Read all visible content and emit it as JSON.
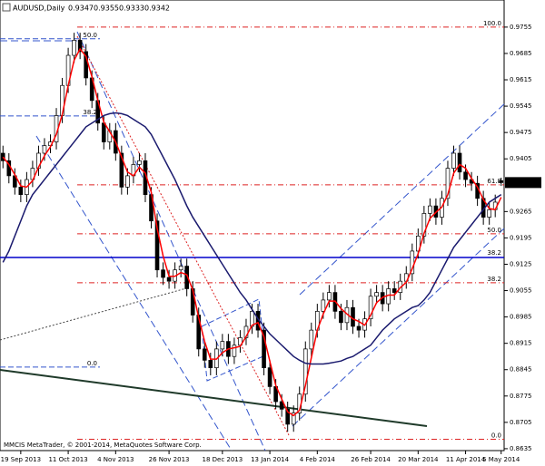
{
  "chart_data": {
    "type": "candlestick",
    "title": "AUDUSD,Daily",
    "footer": "MMCIS MetaTrader, © 2001-2014, MetaQuotes Software Corp.",
    "categories": [
      null,
      null,
      null,
      "19 Sep 2013",
      null,
      null,
      null,
      null,
      null,
      null,
      null,
      "11 Oct 2013",
      null,
      null,
      null,
      null,
      null,
      null,
      null,
      "4 Nov 2013",
      null,
      null,
      null,
      null,
      null,
      null,
      null,
      null,
      "26 Nov 2013",
      null,
      null,
      null,
      null,
      null,
      null,
      null,
      null,
      "18 Dec 2013",
      null,
      null,
      null,
      null,
      null,
      null,
      null,
      "13 Jan 2014",
      null,
      null,
      null,
      null,
      null,
      null,
      null,
      "4 Feb 2014",
      null,
      null,
      null,
      null,
      null,
      null,
      null,
      null,
      "26 Feb 2014",
      null,
      null,
      null,
      null,
      null,
      null,
      null,
      "20 Mar 2014",
      null,
      null,
      null,
      null,
      null,
      null,
      null,
      "11 Apr 2014",
      null,
      null,
      null,
      null,
      null,
      "5 May 2014"
    ],
    "open": [
      0.942,
      0.94,
      0.936,
      0.933,
      0.931,
      0.935,
      0.938,
      0.942,
      0.944,
      0.945,
      0.952,
      0.96,
      0.968,
      0.972,
      0.969,
      0.962,
      0.956,
      0.95,
      0.945,
      0.948,
      0.942,
      0.933,
      0.936,
      0.939,
      0.94,
      0.931,
      0.924,
      0.911,
      0.909,
      0.908,
      0.911,
      0.912,
      0.906,
      0.899,
      0.89,
      0.887,
      0.885,
      0.89,
      0.892,
      0.888,
      0.891,
      0.893,
      0.896,
      0.9,
      0.895,
      0.885,
      0.88,
      0.876,
      0.874,
      0.87,
      0.873,
      0.878,
      0.89,
      0.895,
      0.9,
      0.903,
      0.905,
      0.9,
      0.897,
      0.901,
      0.896,
      0.895,
      0.898,
      0.904,
      0.905,
      0.902,
      0.906,
      0.905,
      0.908,
      0.91,
      0.916,
      0.92,
      0.926,
      0.928,
      0.925,
      0.93,
      0.938,
      0.942,
      0.937,
      0.935,
      0.934,
      0.93,
      0.925,
      0.927,
      0.9347
    ],
    "high": [
      0.944,
      0.942,
      0.938,
      0.935,
      0.937,
      0.94,
      0.944,
      0.946,
      0.947,
      0.954,
      0.962,
      0.97,
      0.974,
      0.974,
      0.971,
      0.964,
      0.958,
      0.952,
      0.95,
      0.95,
      0.944,
      0.938,
      0.941,
      0.942,
      0.942,
      0.933,
      0.926,
      0.913,
      0.911,
      0.913,
      0.914,
      0.914,
      0.908,
      0.901,
      0.892,
      0.889,
      0.892,
      0.894,
      0.894,
      0.893,
      0.895,
      0.898,
      0.902,
      0.902,
      0.897,
      0.887,
      0.882,
      0.878,
      0.876,
      0.875,
      0.88,
      0.892,
      0.897,
      0.902,
      0.905,
      0.907,
      0.907,
      0.902,
      0.903,
      0.903,
      0.898,
      0.9,
      0.906,
      0.907,
      0.907,
      0.908,
      0.908,
      0.91,
      0.912,
      0.918,
      0.922,
      0.928,
      0.93,
      0.93,
      0.932,
      0.94,
      0.944,
      0.944,
      0.939,
      0.937,
      0.936,
      0.932,
      0.929,
      0.931,
      0.9355
    ],
    "low": [
      0.938,
      0.934,
      0.931,
      0.929,
      0.929,
      0.933,
      0.936,
      0.94,
      0.942,
      0.943,
      0.95,
      0.958,
      0.966,
      0.967,
      0.96,
      0.954,
      0.948,
      0.943,
      0.943,
      0.94,
      0.931,
      0.931,
      0.934,
      0.937,
      0.929,
      0.922,
      0.909,
      0.907,
      0.906,
      0.906,
      0.909,
      0.904,
      0.897,
      0.888,
      0.885,
      0.883,
      0.883,
      0.888,
      0.886,
      0.886,
      0.889,
      0.891,
      0.894,
      0.893,
      0.883,
      0.878,
      0.874,
      0.872,
      0.868,
      0.868,
      0.871,
      0.876,
      0.888,
      0.893,
      0.898,
      0.901,
      0.898,
      0.895,
      0.895,
      0.894,
      0.893,
      0.893,
      0.896,
      0.902,
      0.9,
      0.9,
      0.903,
      0.903,
      0.906,
      0.908,
      0.914,
      0.918,
      0.924,
      0.923,
      0.923,
      0.928,
      0.936,
      0.935,
      0.933,
      0.932,
      0.928,
      0.923,
      0.923,
      0.925,
      0.9333
    ],
    "close": [
      0.94,
      0.936,
      0.933,
      0.931,
      0.935,
      0.938,
      0.942,
      0.944,
      0.945,
      0.952,
      0.96,
      0.968,
      0.972,
      0.969,
      0.962,
      0.956,
      0.95,
      0.945,
      0.948,
      0.942,
      0.933,
      0.936,
      0.939,
      0.94,
      0.931,
      0.924,
      0.911,
      0.909,
      0.908,
      0.911,
      0.912,
      0.906,
      0.899,
      0.89,
      0.887,
      0.885,
      0.89,
      0.892,
      0.888,
      0.891,
      0.893,
      0.896,
      0.9,
      0.895,
      0.885,
      0.88,
      0.876,
      0.874,
      0.87,
      0.873,
      0.878,
      0.89,
      0.895,
      0.9,
      0.903,
      0.905,
      0.9,
      0.897,
      0.901,
      0.896,
      0.895,
      0.898,
      0.904,
      0.905,
      0.902,
      0.906,
      0.905,
      0.908,
      0.91,
      0.916,
      0.92,
      0.926,
      0.928,
      0.925,
      0.93,
      0.938,
      0.942,
      0.937,
      0.935,
      0.934,
      0.93,
      0.925,
      0.927,
      0.929,
      0.9342
    ],
    "ma": [
      {
        "color": "#ff0000",
        "values": [
          0.941,
          0.939,
          0.9363,
          0.9333,
          0.933,
          0.9347,
          0.9383,
          0.9413,
          0.9437,
          0.947,
          0.9523,
          0.96,
          0.9667,
          0.9697,
          0.9677,
          0.9623,
          0.956,
          0.9503,
          0.9477,
          0.945,
          0.941,
          0.937,
          0.936,
          0.9383,
          0.9367,
          0.9317,
          0.922,
          0.9147,
          0.9093,
          0.9093,
          0.9103,
          0.9097,
          0.9057,
          0.8983,
          0.892,
          0.8873,
          0.8873,
          0.889,
          0.89,
          0.8903,
          0.8907,
          0.8933,
          0.8963,
          0.897,
          0.8933,
          0.8867,
          0.8803,
          0.8767,
          0.8733,
          0.8723,
          0.8737,
          0.8803,
          0.8877,
          0.895,
          0.8993,
          0.9027,
          0.9027,
          0.9007,
          0.8993,
          0.898,
          0.8973,
          0.8963,
          0.899,
          0.9023,
          0.9037,
          0.9043,
          0.9043,
          0.9063,
          0.9077,
          0.9113,
          0.9153,
          0.9207,
          0.9247,
          0.9263,
          0.9277,
          0.931,
          0.9367,
          0.939,
          0.938,
          0.9353,
          0.933,
          0.9297,
          0.9273,
          0.927,
          0.9303
        ]
      },
      {
        "color": "#1a1a6e",
        "values": [
          0.913,
          0.916,
          0.92,
          0.924,
          0.928,
          0.931,
          0.933,
          0.935,
          0.937,
          0.939,
          0.941,
          0.943,
          0.945,
          0.947,
          0.949,
          0.95,
          0.951,
          0.952,
          0.9525,
          0.9527,
          0.9525,
          0.952,
          0.951,
          0.95,
          0.949,
          0.947,
          0.944,
          0.941,
          0.938,
          0.935,
          0.9315,
          0.928,
          0.925,
          0.9225,
          0.92,
          0.9175,
          0.915,
          0.9125,
          0.91,
          0.9075,
          0.905,
          0.903,
          0.9005,
          0.898,
          0.896,
          0.894,
          0.8925,
          0.891,
          0.8895,
          0.888,
          0.887,
          0.8862,
          0.886,
          0.886,
          0.886,
          0.8862,
          0.8865,
          0.8868,
          0.8875,
          0.888,
          0.889,
          0.89,
          0.891,
          0.893,
          0.895,
          0.8965,
          0.898,
          0.899,
          0.9,
          0.901,
          0.9015,
          0.903,
          0.905,
          0.908,
          0.911,
          0.914,
          0.917,
          0.919,
          0.921,
          0.923,
          0.925,
          0.927,
          0.929,
          0.93,
          0.931
        ]
      }
    ],
    "ylim": [
      0.863,
      0.9827
    ],
    "yticks": [
      0.9755,
      0.9685,
      0.9615,
      0.9545,
      0.9475,
      0.9405,
      0.9265,
      0.9195,
      0.9125,
      0.9055,
      0.8985,
      0.8915,
      0.8845,
      0.8775,
      0.8705,
      0.8635
    ],
    "fib_right": [
      {
        "value": 0.9755,
        "label": "100.0"
      },
      {
        "value": 0.9336,
        "label": "61.8"
      },
      {
        "value": 0.9206,
        "label": "50.0"
      },
      {
        "value": 0.9076,
        "label": "38.2"
      },
      {
        "value": 0.866,
        "label": "0.0"
      }
    ],
    "fib_left": [
      {
        "value": 0.9724,
        "label": "50.0"
      },
      {
        "value": 0.9519,
        "label": "38.2"
      },
      {
        "value": 0.8852,
        "label": "0.0"
      }
    ],
    "hline": {
      "value": 0.9143,
      "label": "38.2",
      "color": "#0000cc"
    }
  }
}
